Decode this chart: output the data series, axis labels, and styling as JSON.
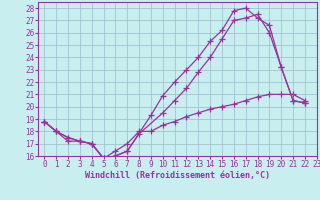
{
  "bg_color": "#c8eef0",
  "line_color": "#993399",
  "grid_color": "#99bbcc",
  "xlabel": "Windchill (Refroidissement éolien,°C)",
  "xlim": [
    -0.5,
    23
  ],
  "ylim": [
    16,
    28.5
  ],
  "xticks": [
    0,
    1,
    2,
    3,
    4,
    5,
    6,
    7,
    8,
    9,
    10,
    11,
    12,
    13,
    14,
    15,
    16,
    17,
    18,
    19,
    20,
    21,
    22,
    23
  ],
  "yticks": [
    16,
    17,
    18,
    19,
    20,
    21,
    22,
    23,
    24,
    25,
    26,
    27,
    28
  ],
  "lines": [
    {
      "x": [
        0,
        1,
        2,
        3,
        4,
        5,
        6,
        7,
        9,
        10,
        11,
        12,
        13,
        14,
        15,
        16,
        17,
        18,
        19,
        20,
        21,
        22
      ],
      "y": [
        18.8,
        18.0,
        17.2,
        17.2,
        17.0,
        15.8,
        16.0,
        16.4,
        19.3,
        20.9,
        22.0,
        23.0,
        24.0,
        25.3,
        26.2,
        27.8,
        28.0,
        27.2,
        26.6,
        23.2,
        20.5,
        20.3
      ]
    },
    {
      "x": [
        0,
        1,
        2,
        3,
        4,
        5,
        6,
        7,
        8,
        10,
        11,
        12,
        13,
        14,
        15,
        16,
        17,
        18,
        19,
        20,
        21,
        22
      ],
      "y": [
        18.8,
        18.0,
        17.5,
        17.2,
        17.0,
        15.8,
        16.0,
        16.4,
        17.8,
        19.5,
        20.5,
        21.5,
        22.8,
        24.0,
        25.5,
        27.0,
        27.2,
        27.5,
        26.0,
        23.2,
        20.5,
        20.3
      ]
    },
    {
      "x": [
        0,
        1,
        2,
        3,
        4,
        5,
        6,
        7,
        8,
        9,
        10,
        11,
        12,
        13,
        14,
        15,
        16,
        17,
        18,
        19,
        20,
        21,
        22
      ],
      "y": [
        18.8,
        18.0,
        17.5,
        17.2,
        17.0,
        15.8,
        16.4,
        17.0,
        18.0,
        18.0,
        18.5,
        18.8,
        19.2,
        19.5,
        19.8,
        20.0,
        20.2,
        20.5,
        20.8,
        21.0,
        21.0,
        21.0,
        20.5
      ]
    }
  ],
  "tick_fontsize": 5.5,
  "xlabel_fontsize": 6,
  "marker": "+",
  "markersize": 4,
  "linewidth": 0.9
}
